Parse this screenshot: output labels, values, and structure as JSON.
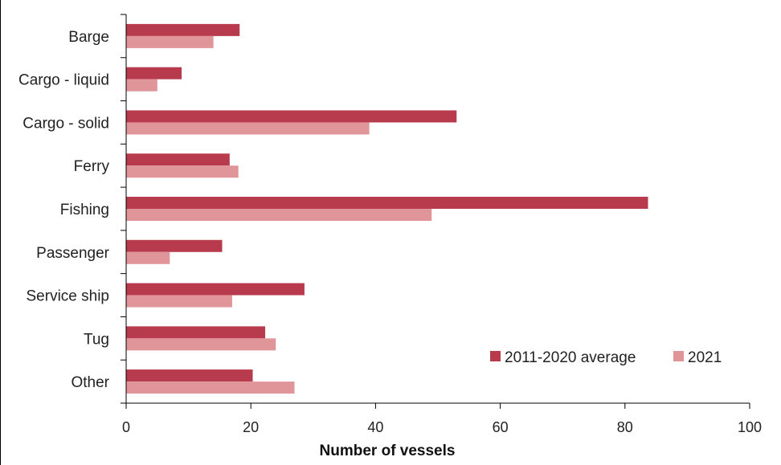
{
  "chart_data": {
    "type": "bar",
    "orientation": "horizontal",
    "title": "",
    "xlabel": "Number of vessels",
    "ylabel": "",
    "xlim": [
      0,
      100
    ],
    "xticks": [
      0,
      20,
      40,
      60,
      80,
      100
    ],
    "grid": false,
    "legend_position": "bottom-right",
    "categories": [
      "Barge",
      "Cargo - liquid",
      "Cargo - solid",
      "Ferry",
      "Fishing",
      "Passenger",
      "Service ship",
      "Tug",
      "Other"
    ],
    "series": [
      {
        "name": "2011-2020 average",
        "color": "#b83b4d",
        "values": [
          18.2,
          8.9,
          53.0,
          16.6,
          83.7,
          15.4,
          28.6,
          22.3,
          20.3
        ]
      },
      {
        "name": "2021",
        "color": "#e09599",
        "values": [
          14,
          5,
          39,
          18,
          49,
          7,
          17,
          24,
          27
        ]
      }
    ]
  }
}
